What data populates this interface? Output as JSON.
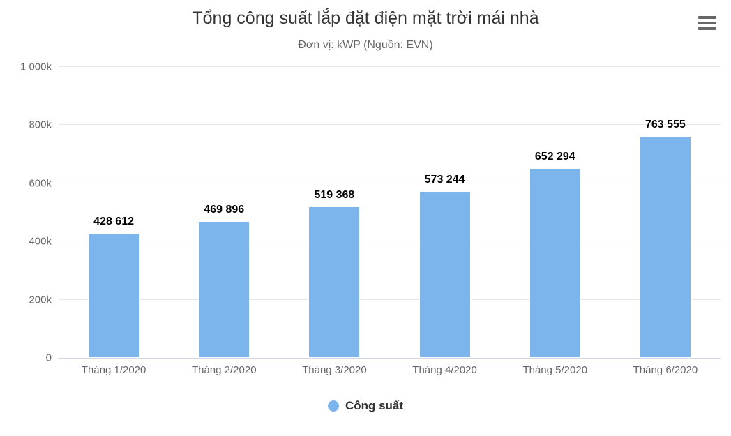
{
  "toolbar": {
    "menu_icon": "hamburger-menu-icon"
  },
  "chart_data": {
    "type": "bar",
    "title": "Tổng công suất lắp đặt điện mặt trời mái nhà",
    "subtitle": "Đơn vị: kWP (Nguồn: EVN)",
    "categories": [
      "Tháng 1/2020",
      "Tháng 2/2020",
      "Tháng 3/2020",
      "Tháng 4/2020",
      "Tháng 5/2020",
      "Tháng 6/2020"
    ],
    "series": [
      {
        "name": "Công suất",
        "values": [
          428612,
          469896,
          519368,
          573244,
          652294,
          763555
        ],
        "value_labels": [
          "428 612",
          "469 896",
          "519 368",
          "573 244",
          "652 294",
          "763 555"
        ],
        "color": "#7cb5ec"
      }
    ],
    "ylim": [
      0,
      1000000
    ],
    "yticks": [
      0,
      200000,
      400000,
      600000,
      800000,
      1000000
    ],
    "ytick_labels": [
      "0",
      "200k",
      "400k",
      "600k",
      "800k",
      "1 000k"
    ],
    "grid": true,
    "legend_position": "bottom",
    "colors": {
      "bar": "#7cb5ec",
      "gridline": "#e6e6e6",
      "axis_line": "#ccd6eb",
      "axis_label": "#666666",
      "title": "#333333",
      "subtitle": "#666666",
      "data_label": "#000000",
      "menu_icon": "#666666"
    }
  },
  "legend": {
    "items": [
      {
        "label": "Công suất",
        "color": "#7cb5ec"
      }
    ]
  }
}
